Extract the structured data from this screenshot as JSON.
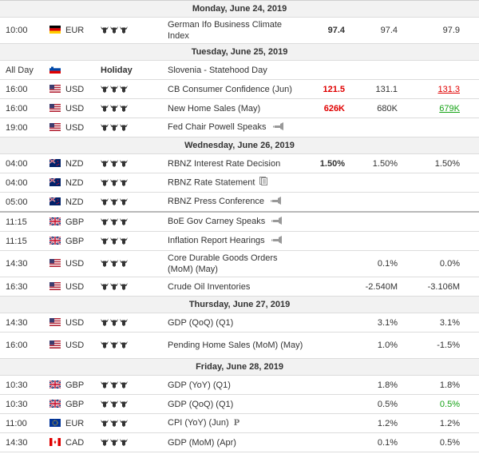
{
  "days": [
    {
      "date": "Monday, June 24, 2019",
      "events": [
        {
          "time": "10:00",
          "flag": "de",
          "currency": "EUR",
          "importance": 3,
          "name": "German Ifo Business Climate Index",
          "tall": true,
          "actual": "97.4",
          "actual_color": "",
          "forecast": "97.4",
          "previous": "97.9",
          "previous_color": "",
          "icon": ""
        }
      ]
    },
    {
      "date": "Tuesday, June 25, 2019",
      "events": [
        {
          "time": "All Day",
          "flag": "si",
          "currency": "",
          "holiday": "Holiday",
          "name": "Slovenia - Statehood Day",
          "actual": "",
          "forecast": "",
          "previous": "",
          "icon": ""
        },
        {
          "time": "16:00",
          "flag": "us",
          "currency": "USD",
          "importance": 3,
          "name": "CB Consumer Confidence (Jun)",
          "actual": "121.5",
          "actual_color": "red",
          "forecast": "131.1",
          "previous": "131.3",
          "previous_color": "red-ul",
          "icon": ""
        },
        {
          "time": "16:00",
          "flag": "us",
          "currency": "USD",
          "importance": 3,
          "name": "New Home Sales (May)",
          "actual": "626K",
          "actual_color": "red",
          "forecast": "680K",
          "previous": "679K",
          "previous_color": "green-ul",
          "icon": ""
        },
        {
          "time": "19:00",
          "flag": "us",
          "currency": "USD",
          "importance": 3,
          "name": "Fed Chair Powell Speaks",
          "actual": "",
          "forecast": "",
          "previous": "",
          "icon": "speaker"
        }
      ]
    },
    {
      "date": "Wednesday, June 26, 2019",
      "events": [
        {
          "time": "04:00",
          "flag": "nz",
          "currency": "NZD",
          "importance": 3,
          "name": "RBNZ Interest Rate Decision",
          "actual": "1.50%",
          "actual_color": "",
          "forecast": "1.50%",
          "previous": "1.50%",
          "previous_color": "",
          "icon": ""
        },
        {
          "time": "04:00",
          "flag": "nz",
          "currency": "NZD",
          "importance": 3,
          "name": "RBNZ Rate Statement",
          "actual": "",
          "forecast": "",
          "previous": "",
          "icon": "doc"
        },
        {
          "time": "05:00",
          "flag": "nz",
          "currency": "NZD",
          "importance": 3,
          "name": "RBNZ Press Conference",
          "actual": "",
          "forecast": "",
          "previous": "",
          "icon": "speaker"
        },
        {
          "time": "11:15",
          "flag": "gb",
          "currency": "GBP",
          "importance": 3,
          "name": "BoE Gov Carney Speaks",
          "sep": true,
          "actual": "",
          "forecast": "",
          "previous": "",
          "icon": "speaker"
        },
        {
          "time": "11:15",
          "flag": "gb",
          "currency": "GBP",
          "importance": 3,
          "name": "Inflation Report Hearings",
          "actual": "",
          "forecast": "",
          "previous": "",
          "icon": "speaker"
        },
        {
          "time": "14:30",
          "flag": "us",
          "currency": "USD",
          "importance": 3,
          "name": "Core Durable Goods Orders (MoM) (May)",
          "tall": true,
          "actual": "",
          "forecast": "0.1%",
          "previous": "0.0%",
          "previous_color": "",
          "icon": ""
        },
        {
          "time": "16:30",
          "flag": "us",
          "currency": "USD",
          "importance": 3,
          "name": "Crude Oil Inventories",
          "actual": "",
          "forecast": "-2.540M",
          "previous": "-3.106M",
          "previous_color": "",
          "icon": ""
        }
      ]
    },
    {
      "date": "Thursday, June 27, 2019",
      "events": [
        {
          "time": "14:30",
          "flag": "us",
          "currency": "USD",
          "importance": 3,
          "name": "GDP (QoQ) (Q1)",
          "actual": "",
          "forecast": "3.1%",
          "previous": "3.1%",
          "previous_color": "",
          "icon": ""
        },
        {
          "time": "16:00",
          "flag": "us",
          "currency": "USD",
          "importance": 3,
          "name": "Pending Home Sales (MoM) (May)",
          "tall": true,
          "actual": "",
          "forecast": "1.0%",
          "previous": "-1.5%",
          "previous_color": "",
          "icon": ""
        }
      ]
    },
    {
      "date": "Friday, June 28, 2019",
      "events": [
        {
          "time": "10:30",
          "flag": "gb",
          "currency": "GBP",
          "importance": 3,
          "name": "GDP (YoY) (Q1)",
          "actual": "",
          "forecast": "1.8%",
          "previous": "1.8%",
          "previous_color": "",
          "icon": ""
        },
        {
          "time": "10:30",
          "flag": "gb",
          "currency": "GBP",
          "importance": 3,
          "name": "GDP (QoQ) (Q1)",
          "actual": "",
          "forecast": "0.5%",
          "previous": "0.5%",
          "previous_color": "green",
          "icon": ""
        },
        {
          "time": "11:00",
          "flag": "eu",
          "currency": "EUR",
          "importance": 3,
          "name": "CPI (YoY) (Jun)",
          "actual": "",
          "forecast": "1.2%",
          "previous": "1.2%",
          "previous_color": "",
          "icon": "prelim"
        },
        {
          "time": "14:30",
          "flag": "ca",
          "currency": "CAD",
          "importance": 3,
          "name": "GDP (MoM) (Apr)",
          "actual": "",
          "forecast": "0.1%",
          "previous": "0.5%",
          "previous_color": "",
          "icon": ""
        }
      ]
    }
  ],
  "icons": {
    "speaker": "speaker-icon",
    "doc": "report-icon",
    "prelim_glyph": "P"
  },
  "colors": {
    "red": "#e00000",
    "green": "#16a316",
    "bull": "#333333",
    "day_bg": "#f2f2f2"
  }
}
